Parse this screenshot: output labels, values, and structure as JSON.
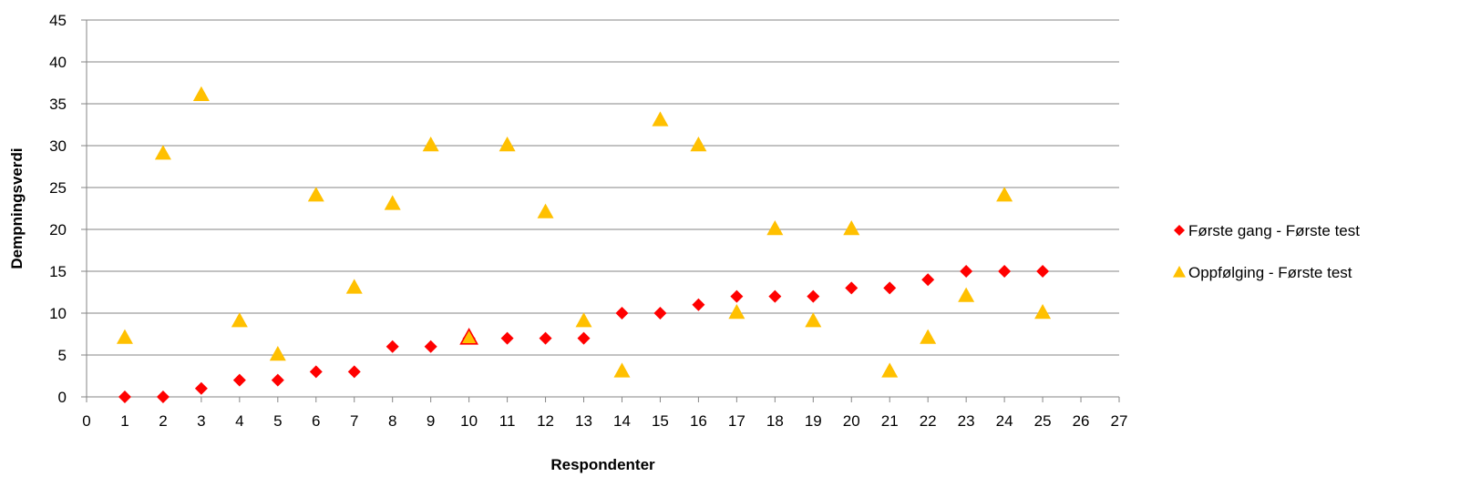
{
  "chart_data": {
    "type": "scatter",
    "title": "",
    "xlabel": "Respondenter",
    "ylabel": "Dempningsverdi",
    "xlim": [
      0,
      27
    ],
    "ylim": [
      0,
      45
    ],
    "x_ticks": [
      0,
      1,
      2,
      3,
      4,
      5,
      6,
      7,
      8,
      9,
      10,
      11,
      12,
      13,
      14,
      15,
      16,
      17,
      18,
      19,
      20,
      21,
      22,
      23,
      24,
      25,
      26,
      27
    ],
    "y_ticks": [
      0,
      5,
      10,
      15,
      20,
      25,
      30,
      35,
      40,
      45
    ],
    "grid": true,
    "legend_position": "right",
    "series": [
      {
        "name": "Første gang - Første test",
        "marker": "diamond",
        "color": "#ff0000",
        "points": [
          [
            1,
            0
          ],
          [
            2,
            0
          ],
          [
            3,
            1
          ],
          [
            4,
            2
          ],
          [
            5,
            2
          ],
          [
            6,
            3
          ],
          [
            7,
            3
          ],
          [
            8,
            6
          ],
          [
            9,
            6
          ],
          [
            10,
            7
          ],
          [
            11,
            7
          ],
          [
            12,
            7
          ],
          [
            13,
            7
          ],
          [
            14,
            10
          ],
          [
            15,
            10
          ],
          [
            16,
            11
          ],
          [
            17,
            12
          ],
          [
            18,
            12
          ],
          [
            19,
            12
          ],
          [
            20,
            13
          ],
          [
            21,
            13
          ],
          [
            22,
            14
          ],
          [
            23,
            15
          ],
          [
            24,
            15
          ],
          [
            25,
            15
          ]
        ]
      },
      {
        "name": "Oppfølging - Første test",
        "marker": "triangle",
        "color": "#ffc000",
        "points": [
          [
            1,
            7
          ],
          [
            2,
            29
          ],
          [
            3,
            36
          ],
          [
            4,
            9
          ],
          [
            5,
            5
          ],
          [
            6,
            24
          ],
          [
            7,
            13
          ],
          [
            8,
            23
          ],
          [
            9,
            30
          ],
          [
            10,
            7
          ],
          [
            11,
            30
          ],
          [
            12,
            22
          ],
          [
            13,
            9
          ],
          [
            14,
            3
          ],
          [
            15,
            33
          ],
          [
            16,
            30
          ],
          [
            17,
            10
          ],
          [
            18,
            20
          ],
          [
            19,
            9
          ],
          [
            20,
            20
          ],
          [
            21,
            3
          ],
          [
            22,
            7
          ],
          [
            23,
            12
          ],
          [
            24,
            24
          ],
          [
            25,
            10
          ]
        ]
      }
    ]
  }
}
